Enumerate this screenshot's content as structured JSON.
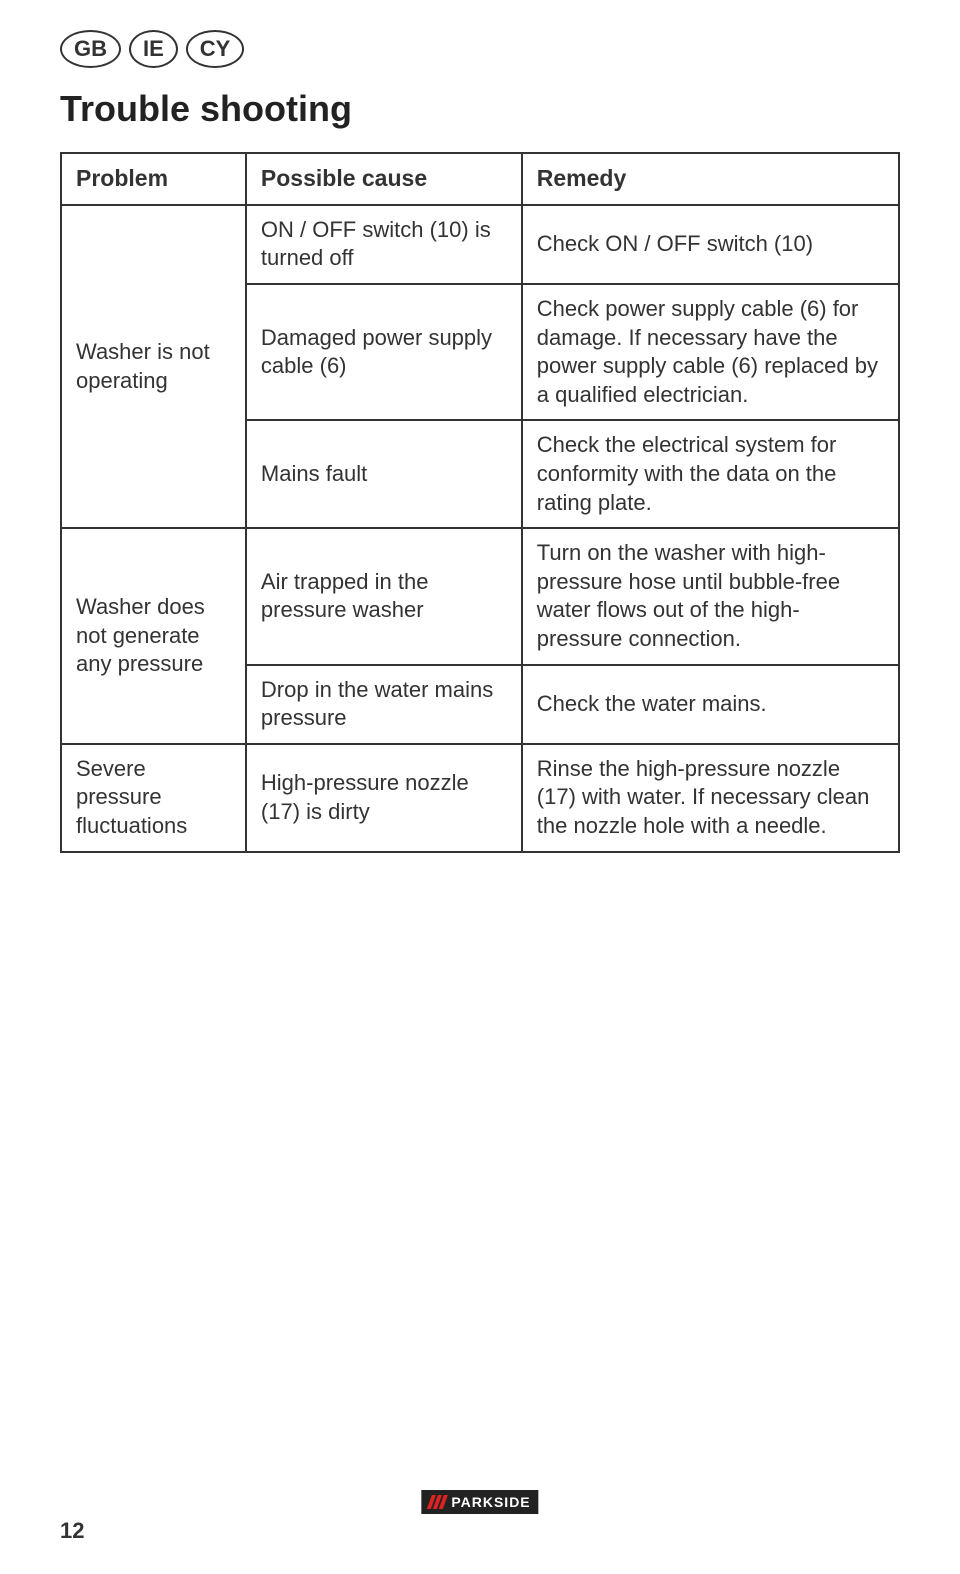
{
  "badges": [
    "GB",
    "IE",
    "CY"
  ],
  "title": "Trouble shooting",
  "headers": {
    "problem": "Problem",
    "cause": "Possible cause",
    "remedy": "Remedy"
  },
  "groups": [
    {
      "problem": "Washer is not operating",
      "rows": [
        {
          "cause": "ON / OFF switch (10) is turned off",
          "remedy": "Check ON / OFF switch (10)"
        },
        {
          "cause": "Damaged power supply cable (6)",
          "remedy": "Check power supply cable (6) for damage. If necessary have the power supply cable (6) replaced by a qualified electrician."
        },
        {
          "cause": "Mains fault",
          "remedy": "Check the electrical system for conformity with the data on the rating plate."
        }
      ]
    },
    {
      "problem": "Washer does not generate any pressure",
      "rows": [
        {
          "cause": "Air trapped in the pressure washer",
          "remedy": "Turn on the washer with high-pressure hose until bubble-free water flows out of the high-pressure connection."
        },
        {
          "cause": "Drop in the water mains pressure",
          "remedy": "Check the water mains."
        }
      ]
    },
    {
      "problem": "Severe pressure fluctuations",
      "rows": [
        {
          "cause": "High-pressure nozzle (17) is dirty",
          "remedy": "Rinse the high-pressure nozzle (17) with water. If necessary clean the nozzle hole with a needle."
        }
      ]
    }
  ],
  "logo": "PARKSIDE",
  "page": "12"
}
